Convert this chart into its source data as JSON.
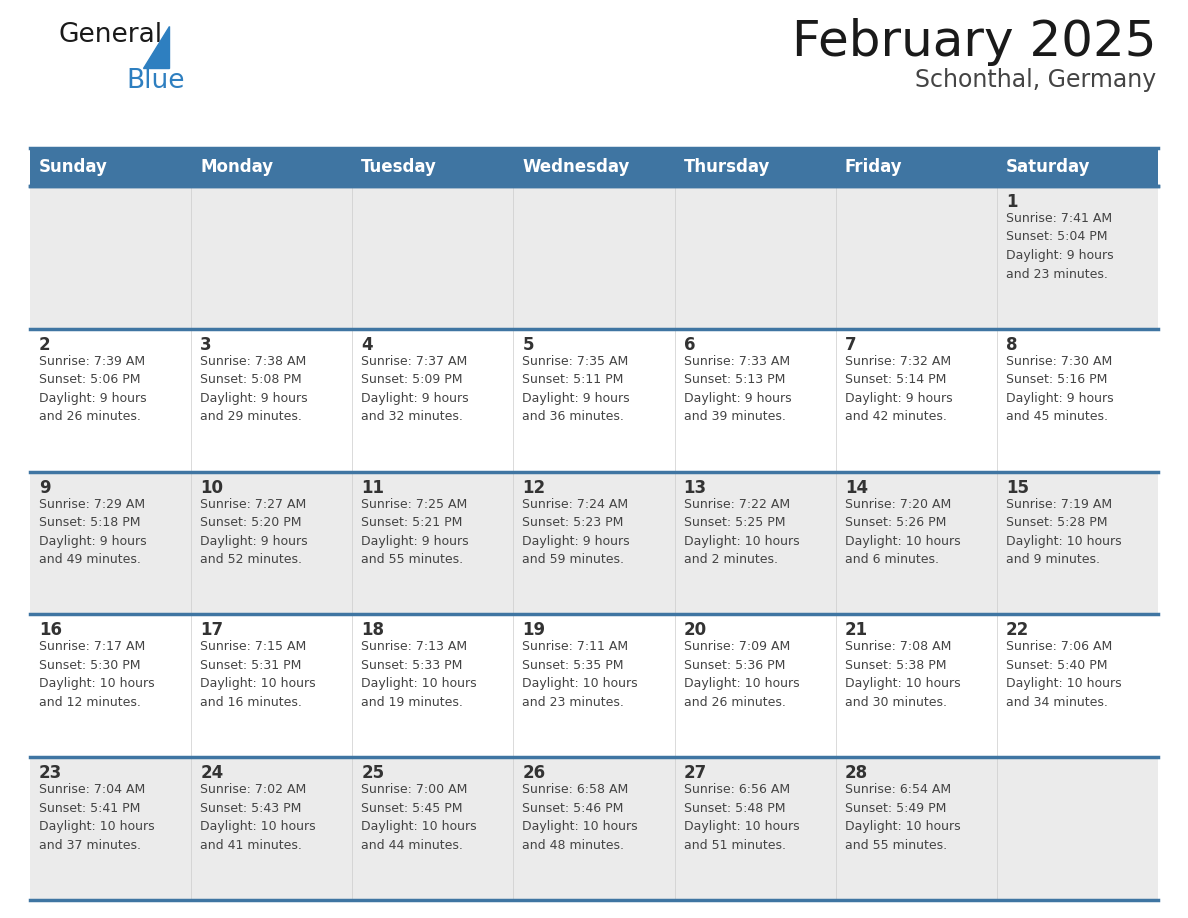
{
  "title": "February 2025",
  "subtitle": "Schonthal, Germany",
  "header_bg": "#3F75A2",
  "header_text_color": "#FFFFFF",
  "days_of_week": [
    "Sunday",
    "Monday",
    "Tuesday",
    "Wednesday",
    "Thursday",
    "Friday",
    "Saturday"
  ],
  "cell_bg_odd": "#EBEBEB",
  "cell_bg_even": "#FFFFFF",
  "sep_line_color": "#3F75A2",
  "day_text_color": "#333333",
  "info_text_color": "#444444",
  "title_color": "#1A1A1A",
  "subtitle_color": "#444444",
  "logo_general_color": "#1A1A1A",
  "logo_blue_color": "#2E7FC0",
  "weeks": [
    [
      {
        "day": null,
        "info": null
      },
      {
        "day": null,
        "info": null
      },
      {
        "day": null,
        "info": null
      },
      {
        "day": null,
        "info": null
      },
      {
        "day": null,
        "info": null
      },
      {
        "day": null,
        "info": null
      },
      {
        "day": 1,
        "info": "Sunrise: 7:41 AM\nSunset: 5:04 PM\nDaylight: 9 hours\nand 23 minutes."
      }
    ],
    [
      {
        "day": 2,
        "info": "Sunrise: 7:39 AM\nSunset: 5:06 PM\nDaylight: 9 hours\nand 26 minutes."
      },
      {
        "day": 3,
        "info": "Sunrise: 7:38 AM\nSunset: 5:08 PM\nDaylight: 9 hours\nand 29 minutes."
      },
      {
        "day": 4,
        "info": "Sunrise: 7:37 AM\nSunset: 5:09 PM\nDaylight: 9 hours\nand 32 minutes."
      },
      {
        "day": 5,
        "info": "Sunrise: 7:35 AM\nSunset: 5:11 PM\nDaylight: 9 hours\nand 36 minutes."
      },
      {
        "day": 6,
        "info": "Sunrise: 7:33 AM\nSunset: 5:13 PM\nDaylight: 9 hours\nand 39 minutes."
      },
      {
        "day": 7,
        "info": "Sunrise: 7:32 AM\nSunset: 5:14 PM\nDaylight: 9 hours\nand 42 minutes."
      },
      {
        "day": 8,
        "info": "Sunrise: 7:30 AM\nSunset: 5:16 PM\nDaylight: 9 hours\nand 45 minutes."
      }
    ],
    [
      {
        "day": 9,
        "info": "Sunrise: 7:29 AM\nSunset: 5:18 PM\nDaylight: 9 hours\nand 49 minutes."
      },
      {
        "day": 10,
        "info": "Sunrise: 7:27 AM\nSunset: 5:20 PM\nDaylight: 9 hours\nand 52 minutes."
      },
      {
        "day": 11,
        "info": "Sunrise: 7:25 AM\nSunset: 5:21 PM\nDaylight: 9 hours\nand 55 minutes."
      },
      {
        "day": 12,
        "info": "Sunrise: 7:24 AM\nSunset: 5:23 PM\nDaylight: 9 hours\nand 59 minutes."
      },
      {
        "day": 13,
        "info": "Sunrise: 7:22 AM\nSunset: 5:25 PM\nDaylight: 10 hours\nand 2 minutes."
      },
      {
        "day": 14,
        "info": "Sunrise: 7:20 AM\nSunset: 5:26 PM\nDaylight: 10 hours\nand 6 minutes."
      },
      {
        "day": 15,
        "info": "Sunrise: 7:19 AM\nSunset: 5:28 PM\nDaylight: 10 hours\nand 9 minutes."
      }
    ],
    [
      {
        "day": 16,
        "info": "Sunrise: 7:17 AM\nSunset: 5:30 PM\nDaylight: 10 hours\nand 12 minutes."
      },
      {
        "day": 17,
        "info": "Sunrise: 7:15 AM\nSunset: 5:31 PM\nDaylight: 10 hours\nand 16 minutes."
      },
      {
        "day": 18,
        "info": "Sunrise: 7:13 AM\nSunset: 5:33 PM\nDaylight: 10 hours\nand 19 minutes."
      },
      {
        "day": 19,
        "info": "Sunrise: 7:11 AM\nSunset: 5:35 PM\nDaylight: 10 hours\nand 23 minutes."
      },
      {
        "day": 20,
        "info": "Sunrise: 7:09 AM\nSunset: 5:36 PM\nDaylight: 10 hours\nand 26 minutes."
      },
      {
        "day": 21,
        "info": "Sunrise: 7:08 AM\nSunset: 5:38 PM\nDaylight: 10 hours\nand 30 minutes."
      },
      {
        "day": 22,
        "info": "Sunrise: 7:06 AM\nSunset: 5:40 PM\nDaylight: 10 hours\nand 34 minutes."
      }
    ],
    [
      {
        "day": 23,
        "info": "Sunrise: 7:04 AM\nSunset: 5:41 PM\nDaylight: 10 hours\nand 37 minutes."
      },
      {
        "day": 24,
        "info": "Sunrise: 7:02 AM\nSunset: 5:43 PM\nDaylight: 10 hours\nand 41 minutes."
      },
      {
        "day": 25,
        "info": "Sunrise: 7:00 AM\nSunset: 5:45 PM\nDaylight: 10 hours\nand 44 minutes."
      },
      {
        "day": 26,
        "info": "Sunrise: 6:58 AM\nSunset: 5:46 PM\nDaylight: 10 hours\nand 48 minutes."
      },
      {
        "day": 27,
        "info": "Sunrise: 6:56 AM\nSunset: 5:48 PM\nDaylight: 10 hours\nand 51 minutes."
      },
      {
        "day": 28,
        "info": "Sunrise: 6:54 AM\nSunset: 5:49 PM\nDaylight: 10 hours\nand 55 minutes."
      },
      {
        "day": null,
        "info": null
      }
    ]
  ]
}
